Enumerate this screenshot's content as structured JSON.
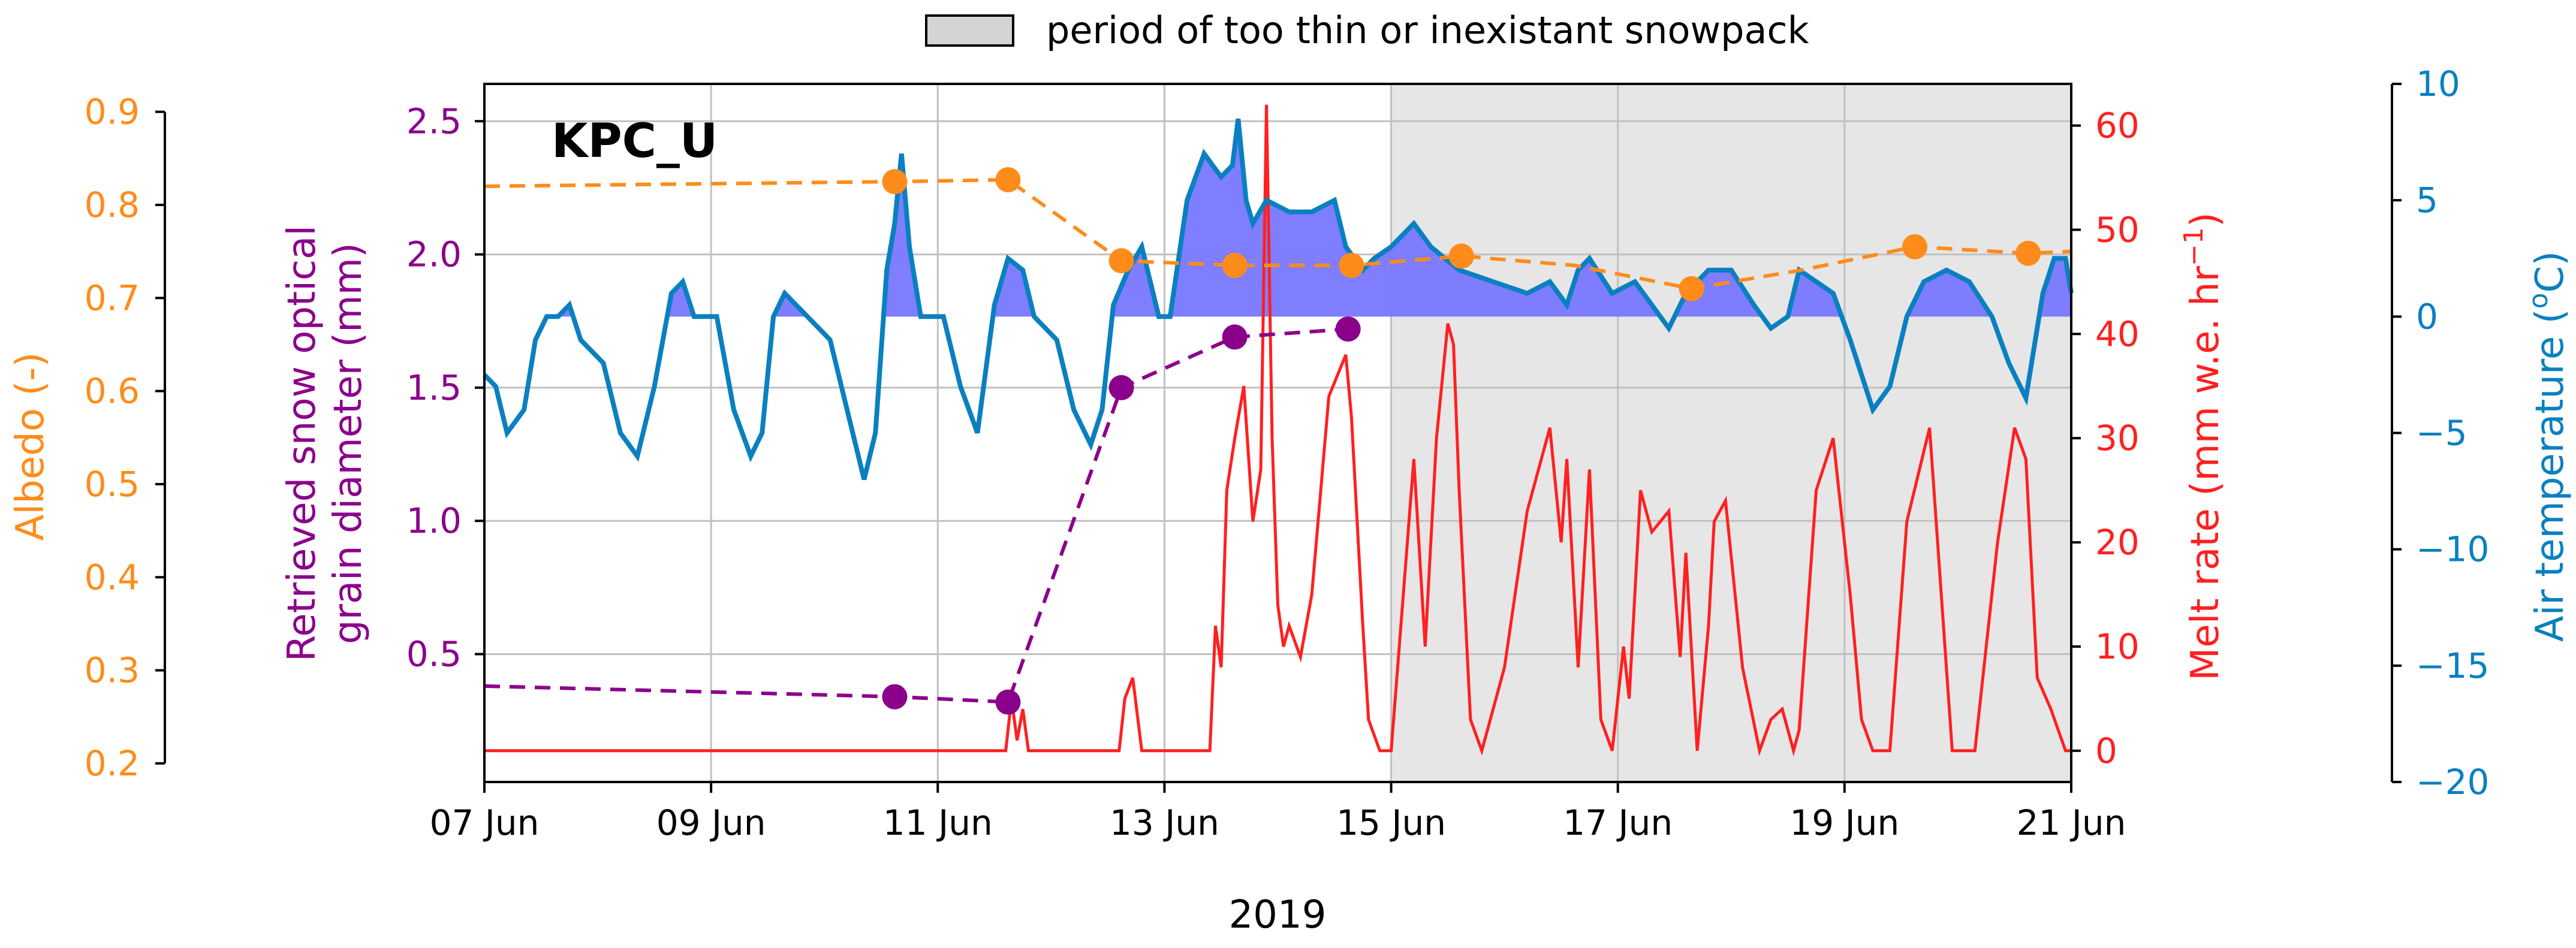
{
  "chart_data": {
    "type": "line",
    "station_label": "KPC_U",
    "xlabel": "2019",
    "x_ticks": [
      "07 Jun",
      "09 Jun",
      "11 Jun",
      "13 Jun",
      "15 Jun",
      "17 Jun",
      "19 Jun",
      "21 Jun"
    ],
    "x_range_days": [
      0,
      14
    ],
    "legend": {
      "label": "period of too thin or inexistant snowpack",
      "position": "top-center"
    },
    "shaded_period": {
      "start_day": 8.0,
      "end_day": 14.0
    },
    "colors": {
      "albedo": "#ff8c1a",
      "grain": "#8b008b",
      "melt": "#ff2020",
      "temp": "#0a80c0",
      "temp_fill": "#7777ff",
      "shade": "#e6e6e6",
      "grid": "#c0c0c0"
    },
    "axes": {
      "albedo": {
        "label": "Albedo (-)",
        "ylim": [
          0.18,
          0.93
        ],
        "ticks": [
          "0.9",
          "0.8",
          "0.7",
          "0.6",
          "0.5",
          "0.4",
          "0.3",
          "0.2"
        ],
        "tick_values": [
          0.9,
          0.8,
          0.7,
          0.6,
          0.5,
          0.4,
          0.3,
          0.2
        ]
      },
      "grain": {
        "label_line1": "Retrieved snow optical",
        "label_line2": "grain diameter (mm)",
        "ylim": [
          0.02,
          2.64
        ],
        "ticks": [
          "2.5",
          "2.0",
          "1.5",
          "1.0",
          "0.5"
        ],
        "tick_values": [
          2.5,
          2.0,
          1.5,
          1.0,
          0.5
        ]
      },
      "melt": {
        "label": "Melt rate (mm w.e. hr",
        "label_sup": "−1",
        "label_end": ")",
        "ylim": [
          -3,
          64
        ],
        "ticks": [
          "60",
          "50",
          "40",
          "30",
          "20",
          "10",
          "0"
        ],
        "tick_values": [
          60,
          50,
          40,
          30,
          20,
          10,
          0
        ]
      },
      "temp": {
        "label": "Air temperature (",
        "label_sup": "o",
        "label_end": "C)",
        "ylim": [
          -20,
          10
        ],
        "ticks": [
          "10",
          "5",
          "0",
          "−5",
          "−10",
          "−15",
          "−20"
        ],
        "tick_values": [
          10,
          5,
          0,
          -5,
          -10,
          -15,
          -20
        ]
      }
    },
    "series": {
      "albedo": {
        "name": "Albedo",
        "x": [
          0,
          3.62,
          4.62,
          5.62,
          6.62,
          7.65,
          8.62,
          9.62,
          10.65,
          11.62,
          12.62,
          13.62,
          14
        ],
        "y": [
          0.82,
          0.825,
          0.827,
          0.74,
          0.735,
          0.735,
          0.745,
          0.735,
          0.71,
          0.73,
          0.755,
          0.748,
          0.75
        ],
        "markers": [
          1,
          2,
          3,
          4,
          5,
          6,
          8,
          10,
          11
        ]
      },
      "grain": {
        "name": "Retrieved snow optical grain diameter",
        "x": [
          0,
          3.62,
          4.62,
          5.62,
          6.62,
          7.62
        ],
        "y": [
          0.38,
          0.34,
          0.32,
          1.5,
          1.69,
          1.72
        ],
        "markers": [
          1,
          2,
          3,
          4,
          5
        ]
      },
      "melt": {
        "name": "Melt rate",
        "x": [
          0,
          4.6,
          4.65,
          4.7,
          4.75,
          4.8,
          4.9,
          5.0,
          5.6,
          5.65,
          5.72,
          5.8,
          5.9,
          6.0,
          6.4,
          6.45,
          6.5,
          6.55,
          6.62,
          6.7,
          6.78,
          6.85,
          6.9,
          6.95,
          7.0,
          7.05,
          7.1,
          7.2,
          7.3,
          7.45,
          7.6,
          7.65,
          7.75,
          7.8,
          7.9,
          8.0,
          8.1,
          8.2,
          8.3,
          8.4,
          8.5,
          8.55,
          8.6,
          8.7,
          8.8,
          9.0,
          9.2,
          9.4,
          9.5,
          9.55,
          9.65,
          9.75,
          9.85,
          9.95,
          10.05,
          10.1,
          10.2,
          10.3,
          10.45,
          10.55,
          10.6,
          10.7,
          10.8,
          10.85,
          10.95,
          11.1,
          11.25,
          11.35,
          11.45,
          11.55,
          11.6,
          11.75,
          11.9,
          12.05,
          12.15,
          12.25,
          12.4,
          12.55,
          12.75,
          12.95,
          13.15,
          13.35,
          13.5,
          13.6,
          13.7,
          13.82,
          13.95,
          14
        ],
        "y": [
          0,
          0,
          5,
          1,
          4,
          0,
          0,
          0,
          0,
          5,
          7,
          0,
          0,
          0,
          0,
          12,
          8,
          25,
          30,
          35,
          22,
          27,
          62,
          30,
          14,
          10,
          12,
          9,
          15,
          34,
          38,
          32,
          12,
          3,
          0,
          0,
          14,
          28,
          10,
          30,
          41,
          39,
          25,
          3,
          0,
          8,
          23,
          31,
          20,
          28,
          8,
          27,
          3,
          0,
          10,
          5,
          25,
          21,
          23,
          9,
          19,
          0,
          12,
          22,
          24,
          8,
          0,
          3,
          4,
          0,
          2,
          25,
          30,
          15,
          3,
          0,
          0,
          22,
          31,
          0,
          0,
          20,
          31,
          28,
          7,
          4,
          0,
          0
        ]
      },
      "temp": {
        "name": "Air temperature",
        "x": [
          0,
          0.1,
          0.2,
          0.35,
          0.45,
          0.55,
          0.65,
          0.75,
          0.85,
          1.05,
          1.2,
          1.35,
          1.5,
          1.65,
          1.75,
          1.85,
          2.05,
          2.2,
          2.35,
          2.45,
          2.55,
          2.65,
          2.75,
          2.85,
          3.05,
          3.2,
          3.35,
          3.45,
          3.55,
          3.62,
          3.68,
          3.75,
          3.85,
          4.05,
          4.2,
          4.35,
          4.5,
          4.62,
          4.75,
          4.85,
          5.05,
          5.2,
          5.35,
          5.45,
          5.55,
          5.68,
          5.8,
          5.95,
          6.05,
          6.2,
          6.35,
          6.5,
          6.6,
          6.65,
          6.72,
          6.78,
          6.9,
          7.1,
          7.3,
          7.5,
          7.6,
          7.75,
          7.85,
          8.0,
          8.1,
          8.2,
          8.35,
          8.6,
          8.9,
          9.2,
          9.4,
          9.55,
          9.65,
          9.75,
          9.95,
          10.15,
          10.3,
          10.45,
          10.6,
          10.8,
          11.0,
          11.2,
          11.35,
          11.5,
          11.6,
          11.75,
          11.9,
          12.05,
          12.25,
          12.4,
          12.55,
          12.7,
          12.9,
          13.1,
          13.3,
          13.45,
          13.6,
          13.75,
          13.85,
          13.95,
          14
        ],
        "y": [
          -2.5,
          -3,
          -5,
          -4,
          -1,
          0,
          0,
          0.5,
          -1,
          -2,
          -5,
          -6,
          -3,
          1,
          1.5,
          0,
          0,
          -4,
          -6,
          -5,
          0,
          1,
          0.5,
          0,
          -1,
          -4,
          -7,
          -5,
          2,
          4,
          7,
          3,
          0,
          0,
          -3,
          -5,
          0.5,
          2.5,
          2,
          0,
          -1,
          -4,
          -5.5,
          -4,
          0.5,
          2,
          3,
          0,
          0,
          5,
          7,
          6,
          6.5,
          8.5,
          5,
          4,
          5,
          4.5,
          4.5,
          5,
          3,
          2,
          2.5,
          3,
          3.5,
          4,
          3,
          2,
          1.5,
          1,
          1.5,
          0.5,
          2,
          2.5,
          1,
          1.5,
          0.5,
          -0.5,
          1,
          2,
          2,
          0.5,
          -0.5,
          0,
          2,
          1.5,
          1,
          -1,
          -4,
          -3,
          0,
          1.5,
          2,
          1.5,
          0,
          -2,
          -3.5,
          1,
          2.5,
          2.5,
          1
        ]
      }
    }
  }
}
